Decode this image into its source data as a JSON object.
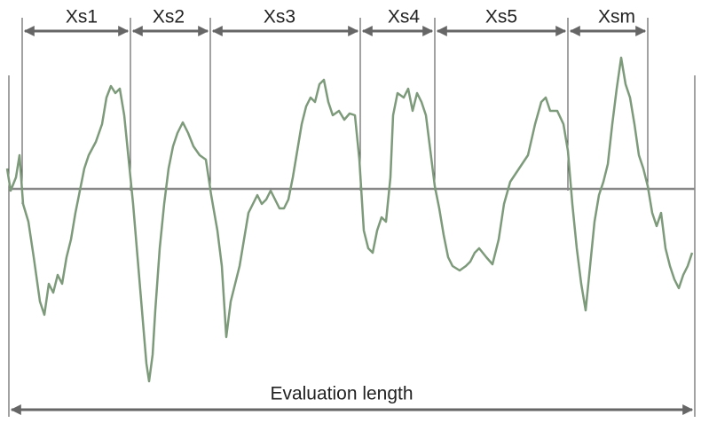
{
  "labels": [
    "Xs1",
    "Xs2",
    "Xs3",
    "Xs4",
    "Xs5",
    "Xsm"
  ],
  "evaluation_length": "Evaluation length"
}
